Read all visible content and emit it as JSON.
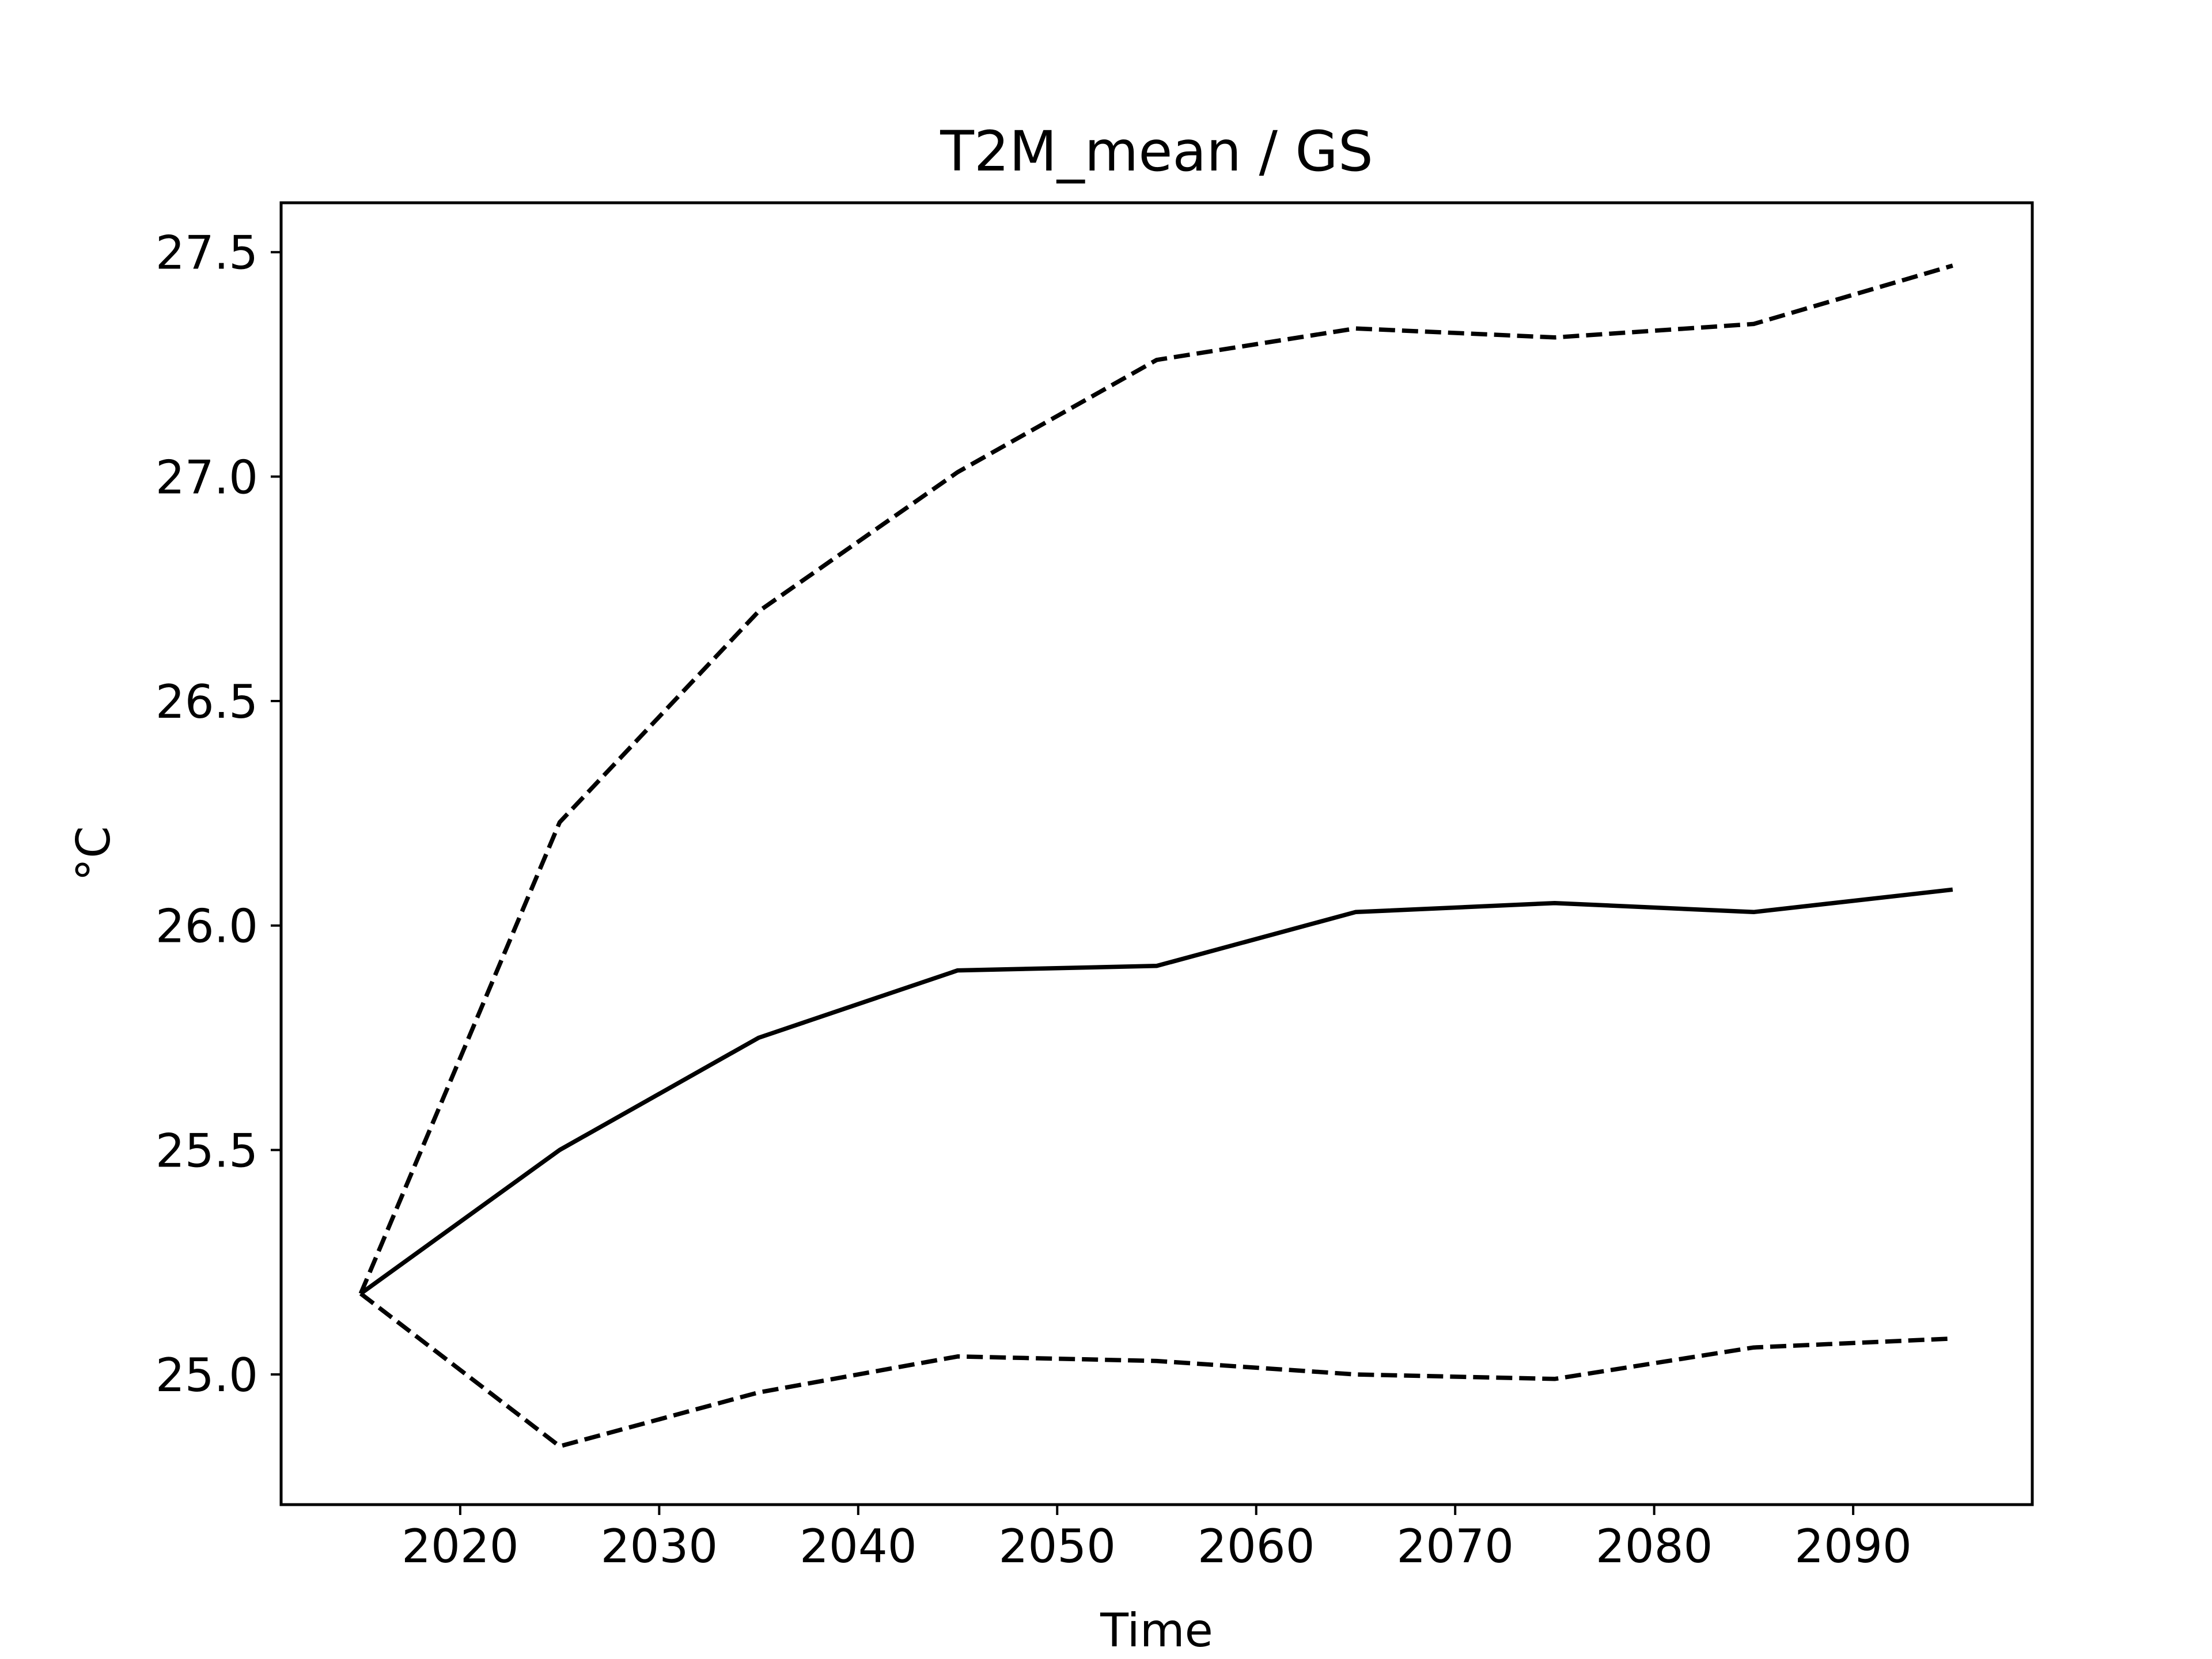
{
  "chart_data": {
    "type": "line",
    "title": "T2M_mean / GS",
    "xlabel": "Time",
    "ylabel": "°C",
    "xlim": [
      2011,
      2099
    ],
    "ylim": [
      24.71,
      27.61
    ],
    "xticks": [
      2020,
      2030,
      2040,
      2050,
      2060,
      2070,
      2080,
      2090
    ],
    "yticks": [
      25.0,
      25.5,
      26.0,
      26.5,
      27.0,
      27.5
    ],
    "grid": false,
    "x": [
      2015,
      2025,
      2035,
      2045,
      2055,
      2065,
      2075,
      2085,
      2095
    ],
    "series": [
      {
        "style": "solid",
        "color": "#000000",
        "values": [
          25.18,
          25.5,
          25.75,
          25.9,
          25.91,
          26.03,
          26.05,
          26.03,
          26.08
        ]
      },
      {
        "style": "dashed",
        "color": "#000000",
        "values": [
          25.18,
          26.23,
          26.7,
          27.01,
          27.26,
          27.33,
          27.31,
          27.34,
          27.47
        ]
      },
      {
        "style": "dashed",
        "color": "#000000",
        "values": [
          25.18,
          24.84,
          24.96,
          25.04,
          25.03,
          25.0,
          24.99,
          25.06,
          25.08
        ]
      }
    ]
  }
}
